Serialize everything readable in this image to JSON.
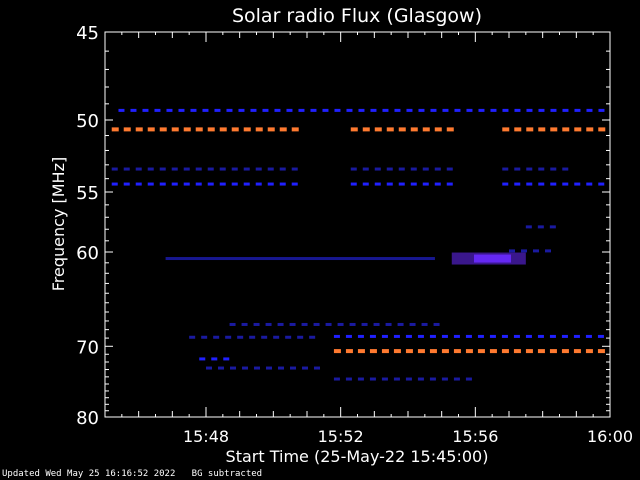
{
  "footer": {
    "updated": "Updated Wed May 25 16:16:52 2022",
    "note": "BG subtracted"
  },
  "chart_data": {
    "type": "heatmap",
    "title": "Solar radio Flux (Glasgow)",
    "xlabel": "Start Time (25-May-22 15:45:00)",
    "ylabel": "Frequency [MHz]",
    "x_range_minutes": [
      0,
      15
    ],
    "y_range": [
      45,
      80
    ],
    "y_scale": "reciprocal",
    "x_ticks": [
      {
        "label": "15:48",
        "minute": 3
      },
      {
        "label": "15:52",
        "minute": 7
      },
      {
        "label": "15:56",
        "minute": 11
      },
      {
        "label": "16:00",
        "minute": 15
      }
    ],
    "y_ticks": [
      45,
      50,
      55,
      60,
      70,
      80
    ],
    "colors": {
      "background": "#000000",
      "weak": "#1a1aa0",
      "medium": "#2020ff",
      "strong": "#6a2aff",
      "hot": "#ff7a30"
    },
    "features": [
      {
        "kind": "dashed",
        "freq": 49.4,
        "x_start": 0.4,
        "x_end": 15,
        "intensity": "medium"
      },
      {
        "kind": "dashed",
        "freq": 50.6,
        "x_start": 0.2,
        "x_end": 5.8,
        "intensity": "hot"
      },
      {
        "kind": "dashed",
        "freq": 50.6,
        "x_start": 7.3,
        "x_end": 10.6,
        "intensity": "hot"
      },
      {
        "kind": "dashed",
        "freq": 50.6,
        "x_start": 11.8,
        "x_end": 15,
        "intensity": "hot"
      },
      {
        "kind": "dashed",
        "freq": 53.3,
        "x_start": 0.2,
        "x_end": 6.0,
        "intensity": "weak"
      },
      {
        "kind": "dashed",
        "freq": 53.3,
        "x_start": 7.3,
        "x_end": 10.6,
        "intensity": "weak"
      },
      {
        "kind": "dashed",
        "freq": 53.3,
        "x_start": 11.8,
        "x_end": 14.0,
        "intensity": "weak"
      },
      {
        "kind": "dashed",
        "freq": 54.4,
        "x_start": 0.2,
        "x_end": 6.0,
        "intensity": "medium"
      },
      {
        "kind": "dashed",
        "freq": 54.4,
        "x_start": 7.3,
        "x_end": 10.6,
        "intensity": "medium"
      },
      {
        "kind": "dashed",
        "freq": 54.4,
        "x_start": 11.8,
        "x_end": 15,
        "intensity": "medium"
      },
      {
        "kind": "line",
        "freq": 60.6,
        "x_start": 1.8,
        "x_end": 9.8,
        "intensity": "weak"
      },
      {
        "kind": "blob",
        "freq": 60.6,
        "x_start": 10.3,
        "x_end": 12.5,
        "intensity": "strong"
      },
      {
        "kind": "dashed",
        "freq": 59.9,
        "x_start": 12.0,
        "x_end": 13.5,
        "intensity": "weak"
      },
      {
        "kind": "dashed",
        "freq": 57.8,
        "x_start": 12.5,
        "x_end": 13.5,
        "intensity": "weak"
      },
      {
        "kind": "dashed",
        "freq": 67.4,
        "x_start": 3.7,
        "x_end": 10.2,
        "intensity": "weak"
      },
      {
        "kind": "dashed",
        "freq": 68.9,
        "x_start": 2.5,
        "x_end": 6.5,
        "intensity": "weak"
      },
      {
        "kind": "dashed",
        "freq": 68.8,
        "x_start": 6.8,
        "x_end": 15,
        "intensity": "medium"
      },
      {
        "kind": "dashed",
        "freq": 70.6,
        "x_start": 6.8,
        "x_end": 15,
        "intensity": "hot"
      },
      {
        "kind": "dashed",
        "freq": 71.6,
        "x_start": 2.8,
        "x_end": 4.0,
        "intensity": "medium"
      },
      {
        "kind": "dashed",
        "freq": 72.8,
        "x_start": 3.0,
        "x_end": 6.5,
        "intensity": "weak"
      },
      {
        "kind": "dashed",
        "freq": 74.3,
        "x_start": 6.8,
        "x_end": 11.2,
        "intensity": "weak"
      }
    ]
  }
}
